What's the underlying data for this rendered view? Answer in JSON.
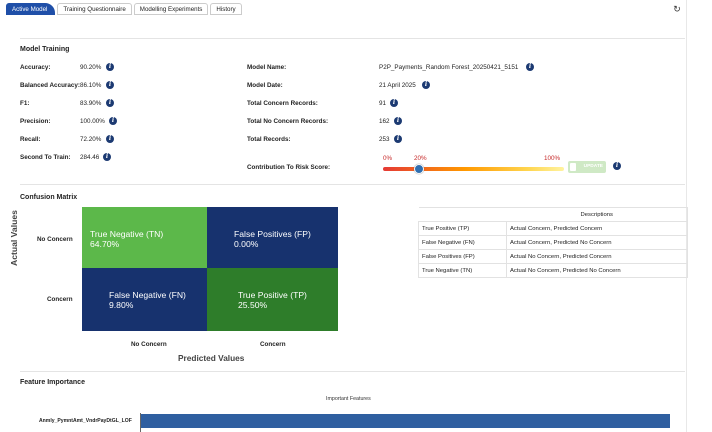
{
  "tabs": [
    {
      "label": "Active Model",
      "active": true
    },
    {
      "label": "Training Questionnaire",
      "active": false
    },
    {
      "label": "Modelling Experiments",
      "active": false
    },
    {
      "label": "History",
      "active": false
    }
  ],
  "refresh_icon": "refresh-icon",
  "model_training": {
    "title": "Model Training",
    "left_metrics": [
      {
        "label": "Accuracy:",
        "value": "90.20%"
      },
      {
        "label": "Balanced Accuracy:",
        "value": "86.10%"
      },
      {
        "label": "F1:",
        "value": "83.90%"
      },
      {
        "label": "Precision:",
        "value": "100.00%"
      },
      {
        "label": "Recall:",
        "value": "72.20%"
      },
      {
        "label": "Second To Train:",
        "value": "284.46"
      }
    ],
    "right_metrics": [
      {
        "label": "Model Name:",
        "value": "P2P_Payments_Random Forest_20250421_5151"
      },
      {
        "label": "Model Date:",
        "value": "21 April 2025"
      },
      {
        "label": "Total Concern Records:",
        "value": "91"
      },
      {
        "label": "Total No Concern Records:",
        "value": "162"
      },
      {
        "label": "Total Records:",
        "value": "253"
      }
    ],
    "contribution": {
      "label": "Contribution To Risk Score:",
      "min_label": "0%",
      "current_label": "20%",
      "max_label": "100%",
      "value": 0.2,
      "update_label": "UPDATE"
    }
  },
  "confusion_matrix": {
    "title": "Confusion Matrix",
    "y_axis_label": "Actual Values",
    "x_axis_label": "Predicted Values",
    "row_labels": [
      "No Concern",
      "Concern"
    ],
    "col_labels": [
      "No Concern",
      "Concern"
    ],
    "cells": [
      {
        "name": "True Negative (TN)",
        "value": "64.70%",
        "color": "#5cb84a"
      },
      {
        "name": "False Positives (FP)",
        "value": "0.00%",
        "color": "#17326e"
      },
      {
        "name": "False Negative (FN)",
        "value": "9.80%",
        "color": "#17326e"
      },
      {
        "name": "True Positive (TP)",
        "value": "25.50%",
        "color": "#2e7d2a"
      }
    ]
  },
  "descriptions": {
    "header": "Descriptions",
    "rows": [
      {
        "term": "True Positive (TP)",
        "desc": "Actual Concern, Predicted Concern"
      },
      {
        "term": "False Negative (FN)",
        "desc": "Actual Concern, Predicted No Concern"
      },
      {
        "term": "False Positives (FP)",
        "desc": "Actual No Concern, Predicted Concern"
      },
      {
        "term": "True Negative (TN)",
        "desc": "Actual No Concern, Predicted No Concern"
      }
    ]
  },
  "feature_importance": {
    "title": "Feature Importance",
    "chart_title": "Important Features",
    "features": [
      {
        "name": "Anmly_PymntAmt_VndrPayDtGL_LOF",
        "importance": 1.0
      }
    ]
  },
  "colors": {
    "accent": "#1f4fa8",
    "info": "#1c3a72",
    "slider_thumb": "#2f6fb0",
    "bar": "#2f5fa0"
  }
}
